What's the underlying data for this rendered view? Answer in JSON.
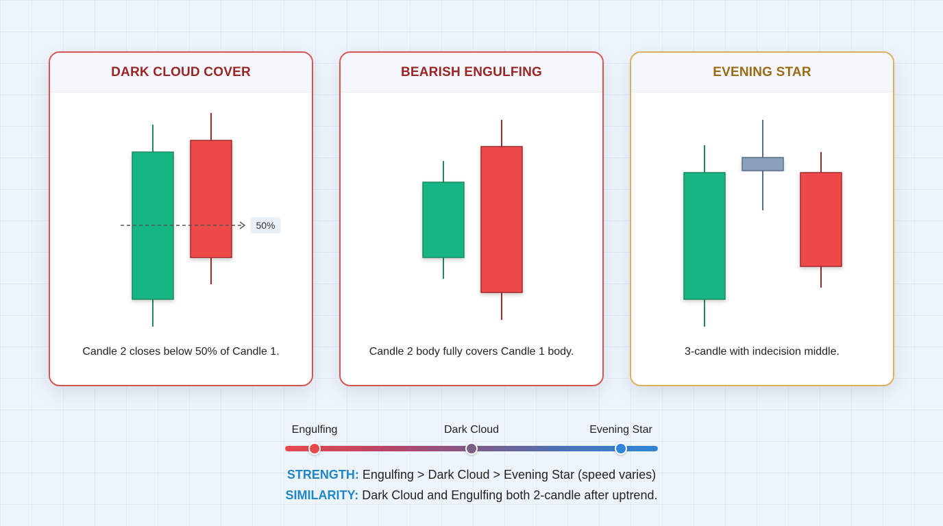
{
  "colors": {
    "bull": "#12b584",
    "bear": "#ee4a4a",
    "neutral": "#8aa1bb",
    "card_red_border": "#d9534f",
    "card_gold_border": "#dcae5e",
    "accent_blue": "#1f86c9"
  },
  "cards": [
    {
      "title": "DARK CLOUD COVER",
      "caption": "Candle 2 closes below 50% of Candle 1.",
      "marker_label": "50%"
    },
    {
      "title": "BEARISH ENGULFING",
      "caption": "Candle 2 body fully covers Candle 1 body."
    },
    {
      "title": "EVENING STAR",
      "caption": "3-candle with indecision middle."
    }
  ],
  "scale": {
    "labels": [
      "Engulfing",
      "Dark Cloud",
      "Evening Star"
    ]
  },
  "notes": {
    "strength_key": "STRENGTH:",
    "strength_text": " Engulfing > Dark Cloud > Evening Star (speed varies)",
    "similarity_key": "SIMILARITY:",
    "similarity_text": " Dark Cloud and Engulfing both 2-candle after uptrend."
  }
}
